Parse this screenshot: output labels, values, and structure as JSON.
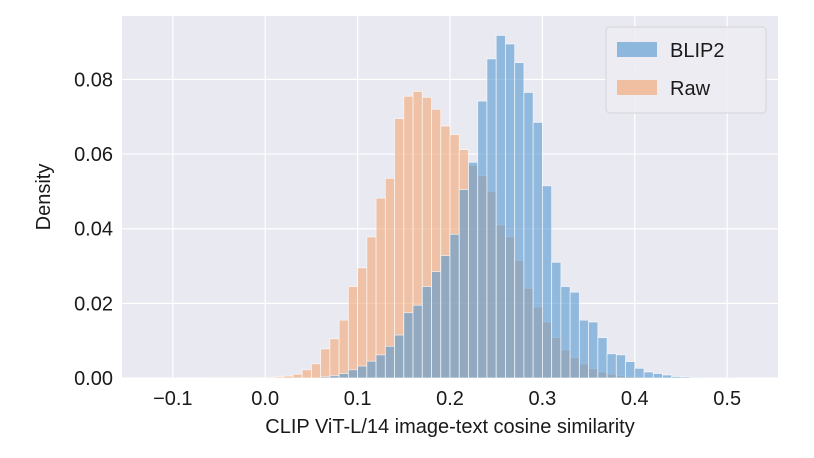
{
  "chart_data": {
    "type": "bar",
    "subtype": "histogram",
    "xlabel": "CLIP ViT-L/14 image-text cosine similarity",
    "ylabel": "Density",
    "xlim": [
      -0.155,
      0.555
    ],
    "ylim": [
      0.0,
      0.097
    ],
    "xticks": [
      -0.1,
      0.0,
      0.1,
      0.2,
      0.3,
      0.4,
      0.5
    ],
    "xtick_labels": [
      "−0.1",
      "0.0",
      "0.1",
      "0.2",
      "0.3",
      "0.4",
      "0.5"
    ],
    "yticks": [
      0.0,
      0.02,
      0.04,
      0.06,
      0.08
    ],
    "ytick_labels": [
      "0.00",
      "0.02",
      "0.04",
      "0.06",
      "0.08"
    ],
    "grid": true,
    "legend_position": "top-right",
    "bin_width": 0.01,
    "series": [
      {
        "name": "BLIP2",
        "color": "#5b9bd0",
        "bins": [
          [
            0.06,
            0.0003
          ],
          [
            0.07,
            0.0006
          ],
          [
            0.08,
            0.0012
          ],
          [
            0.09,
            0.0022
          ],
          [
            0.1,
            0.0032
          ],
          [
            0.11,
            0.0045
          ],
          [
            0.12,
            0.0062
          ],
          [
            0.13,
            0.0085
          ],
          [
            0.14,
            0.0115
          ],
          [
            0.15,
            0.0175
          ],
          [
            0.16,
            0.0195
          ],
          [
            0.17,
            0.0245
          ],
          [
            0.18,
            0.0285
          ],
          [
            0.19,
            0.0328
          ],
          [
            0.2,
            0.0385
          ],
          [
            0.21,
            0.0505
          ],
          [
            0.22,
            0.0578
          ],
          [
            0.23,
            0.0742
          ],
          [
            0.24,
            0.0855
          ],
          [
            0.25,
            0.0918
          ],
          [
            0.26,
            0.0895
          ],
          [
            0.27,
            0.0845
          ],
          [
            0.28,
            0.0765
          ],
          [
            0.29,
            0.0685
          ],
          [
            0.3,
            0.0515
          ],
          [
            0.31,
            0.031
          ],
          [
            0.32,
            0.0245
          ],
          [
            0.33,
            0.023
          ],
          [
            0.34,
            0.0155
          ],
          [
            0.35,
            0.015
          ],
          [
            0.36,
            0.0108
          ],
          [
            0.37,
            0.0065
          ],
          [
            0.38,
            0.0062
          ],
          [
            0.39,
            0.0044
          ],
          [
            0.4,
            0.0026
          ],
          [
            0.41,
            0.0016
          ],
          [
            0.42,
            0.0012
          ],
          [
            0.43,
            0.0008
          ],
          [
            0.44,
            0.0004
          ],
          [
            0.45,
            0.0003
          ],
          [
            0.46,
            0.0002
          ],
          [
            0.47,
            0.0001
          ],
          [
            0.48,
            0.0001
          ],
          [
            0.5,
            0.0001
          ]
        ]
      },
      {
        "name": "Raw",
        "color": "#f2a877",
        "bins": [
          [
            -0.06,
            0.0001
          ],
          [
            -0.04,
            0.0001
          ],
          [
            -0.02,
            0.0001
          ],
          [
            0.0,
            0.0002
          ],
          [
            0.01,
            0.0003
          ],
          [
            0.02,
            0.0005
          ],
          [
            0.03,
            0.001
          ],
          [
            0.04,
            0.0022
          ],
          [
            0.05,
            0.0038
          ],
          [
            0.06,
            0.0078
          ],
          [
            0.07,
            0.0105
          ],
          [
            0.08,
            0.0155
          ],
          [
            0.09,
            0.0245
          ],
          [
            0.1,
            0.0295
          ],
          [
            0.11,
            0.0378
          ],
          [
            0.12,
            0.0482
          ],
          [
            0.13,
            0.0535
          ],
          [
            0.14,
            0.0695
          ],
          [
            0.15,
            0.0755
          ],
          [
            0.16,
            0.0768
          ],
          [
            0.17,
            0.0752
          ],
          [
            0.18,
            0.072
          ],
          [
            0.19,
            0.0675
          ],
          [
            0.2,
            0.0652
          ],
          [
            0.21,
            0.0612
          ],
          [
            0.22,
            0.057
          ],
          [
            0.23,
            0.0542
          ],
          [
            0.24,
            0.05
          ],
          [
            0.25,
            0.041
          ],
          [
            0.26,
            0.0378
          ],
          [
            0.27,
            0.0315
          ],
          [
            0.28,
            0.024
          ],
          [
            0.29,
            0.019
          ],
          [
            0.3,
            0.015
          ],
          [
            0.31,
            0.0108
          ],
          [
            0.32,
            0.0075
          ],
          [
            0.33,
            0.0055
          ],
          [
            0.34,
            0.0038
          ],
          [
            0.35,
            0.0025
          ],
          [
            0.36,
            0.0016
          ],
          [
            0.37,
            0.001
          ],
          [
            0.38,
            0.0006
          ],
          [
            0.39,
            0.0004
          ],
          [
            0.4,
            0.0002
          ],
          [
            0.41,
            0.0001
          ],
          [
            0.43,
            0.0001
          ]
        ]
      }
    ]
  }
}
